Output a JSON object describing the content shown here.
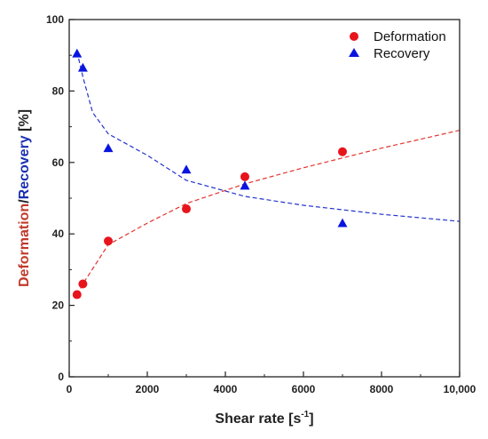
{
  "chart_data": {
    "type": "scatter",
    "xlabel_main": "Shear rate [s",
    "xlabel_sup": "-1",
    "xlabel_end": "]",
    "ylabel_parts": [
      {
        "text": "Deformation",
        "color": "#c0392b"
      },
      {
        "text": "/",
        "color": "#222222"
      },
      {
        "text": "Recovery",
        "color": "#1a2fb0"
      },
      {
        "text": " [%]",
        "color": "#222222"
      }
    ],
    "xlim": [
      0,
      10000
    ],
    "ylim": [
      0,
      100
    ],
    "x_ticks": [
      0,
      2000,
      4000,
      6000,
      8000,
      10000
    ],
    "x_tick_labels": [
      "0",
      "2000",
      "4000",
      "6000",
      "8000",
      "10,000"
    ],
    "y_ticks": [
      0,
      20,
      40,
      60,
      80,
      100
    ],
    "y_tick_labels": [
      "0",
      "20",
      "40",
      "60",
      "80",
      "100"
    ],
    "legend_position": "top-right",
    "series": [
      {
        "name": "Deformation",
        "marker": "circle",
        "color": "#e8141c",
        "x": [
          200,
          350,
          1000,
          3000,
          4500,
          7000
        ],
        "y": [
          23,
          26,
          38,
          47,
          56,
          63
        ],
        "fit_x": [
          200,
          350,
          1000,
          2000,
          3000,
          4500,
          6000,
          8000,
          10000
        ],
        "fit_y": [
          23,
          26,
          37,
          43,
          48.5,
          54,
          58.5,
          64,
          69
        ]
      },
      {
        "name": "Recovery",
        "marker": "triangle",
        "color": "#0a14e0",
        "x": [
          200,
          350,
          1000,
          3000,
          4500,
          7000
        ],
        "y": [
          90.5,
          86.5,
          64,
          58,
          53.5,
          43
        ],
        "fit_x": [
          200,
          350,
          600,
          1000,
          2000,
          3000,
          4500,
          6000,
          8000,
          10000
        ],
        "fit_y": [
          91,
          84,
          74,
          68,
          62,
          55,
          50.5,
          48,
          45.5,
          43.5
        ]
      }
    ]
  }
}
